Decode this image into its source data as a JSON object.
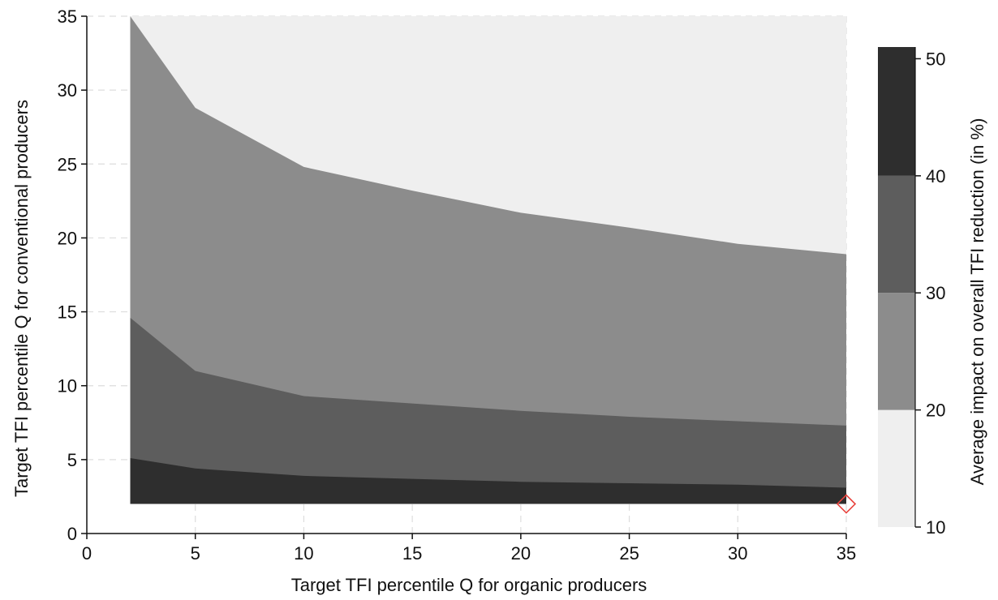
{
  "chart_data": {
    "type": "heatmap",
    "subtype": "filled contour",
    "xlabel": "Target TFI percentile Q for organic producers",
    "ylabel": "Target TFI percentile Q for conventional producers",
    "colorbar_label": "Average impact on overall TFI reduction (in %)",
    "xlim": [
      0,
      35
    ],
    "ylim": [
      0,
      35
    ],
    "xticks": [
      0,
      5,
      10,
      15,
      20,
      25,
      30,
      35
    ],
    "yticks": [
      0,
      5,
      10,
      15,
      20,
      25,
      30,
      35
    ],
    "grid": true,
    "data_extent": {
      "x": [
        2,
        35
      ],
      "y": [
        2,
        35
      ]
    },
    "colorbar": {
      "ticks": [
        10,
        20,
        30,
        40,
        50
      ],
      "levels": [
        {
          "range": [
            10,
            20
          ],
          "color": "#efefef"
        },
        {
          "range": [
            20,
            30
          ],
          "color": "#8c8c8c"
        },
        {
          "range": [
            30,
            40
          ],
          "color": "#5d5d5d"
        },
        {
          "range": [
            40,
            51
          ],
          "color": "#2e2e2e"
        }
      ]
    },
    "boundaries": [
      {
        "between": [
          20,
          30
        ],
        "x": [
          2,
          5,
          10,
          15,
          20,
          25,
          30,
          35
        ],
        "y": [
          35,
          28.8,
          24.8,
          23.2,
          21.7,
          20.7,
          19.6,
          18.9
        ]
      },
      {
        "between": [
          30,
          40
        ],
        "x": [
          2,
          5,
          10,
          15,
          20,
          25,
          30,
          35
        ],
        "y": [
          14.6,
          11.0,
          9.3,
          8.8,
          8.3,
          7.9,
          7.6,
          7.3
        ]
      },
      {
        "between": [
          40,
          50
        ],
        "x": [
          2,
          5,
          10,
          15,
          20,
          25,
          30,
          35
        ],
        "y": [
          5.1,
          4.4,
          3.9,
          3.7,
          3.5,
          3.4,
          3.3,
          3.1
        ]
      }
    ],
    "marker": {
      "x": 35,
      "y": 2,
      "shape": "diamond",
      "color": "#e8413c"
    }
  }
}
